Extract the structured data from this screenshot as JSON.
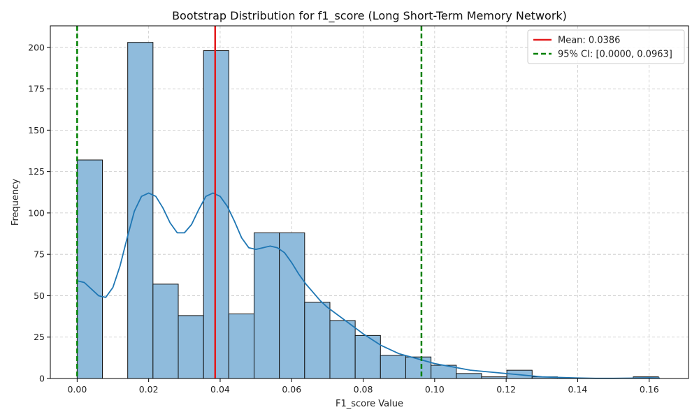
{
  "chart_data": {
    "type": "bar",
    "title": "Bootstrap Distribution for f1_score (Long Short-Term Memory Network)",
    "xlabel": "F1_score Value",
    "ylabel": "Frequency",
    "xlim": [
      -0.0075,
      0.171
    ],
    "ylim": [
      0,
      213
    ],
    "xticks": [
      0.0,
      0.02,
      0.04,
      0.06,
      0.08,
      0.1,
      0.12,
      0.14,
      0.16
    ],
    "xtick_labels": [
      "0.00",
      "0.02",
      "0.04",
      "0.06",
      "0.08",
      "0.10",
      "0.12",
      "0.14",
      "0.16"
    ],
    "yticks": [
      0,
      25,
      50,
      75,
      100,
      125,
      150,
      175,
      200
    ],
    "grid": true,
    "legend_position": "top-right",
    "bin_width": 0.00707,
    "bins": [
      {
        "x0": 0.0,
        "count": 132
      },
      {
        "x0": 0.00707,
        "count": 0
      },
      {
        "x0": 0.01414,
        "count": 203
      },
      {
        "x0": 0.02121,
        "count": 57
      },
      {
        "x0": 0.02828,
        "count": 38
      },
      {
        "x0": 0.03535,
        "count": 198
      },
      {
        "x0": 0.04242,
        "count": 39
      },
      {
        "x0": 0.04949,
        "count": 88
      },
      {
        "x0": 0.05656,
        "count": 88
      },
      {
        "x0": 0.06363,
        "count": 46
      },
      {
        "x0": 0.0707,
        "count": 35
      },
      {
        "x0": 0.07777,
        "count": 26
      },
      {
        "x0": 0.08484,
        "count": 14
      },
      {
        "x0": 0.09191,
        "count": 13
      },
      {
        "x0": 0.09898,
        "count": 8
      },
      {
        "x0": 0.10605,
        "count": 3
      },
      {
        "x0": 0.11312,
        "count": 1
      },
      {
        "x0": 0.12019,
        "count": 5
      },
      {
        "x0": 0.12726,
        "count": 1
      },
      {
        "x0": 0.13433,
        "count": 0
      },
      {
        "x0": 0.1414,
        "count": 0
      },
      {
        "x0": 0.14847,
        "count": 0
      },
      {
        "x0": 0.15554,
        "count": 1
      }
    ],
    "kde": {
      "x": [
        0.0,
        0.002,
        0.004,
        0.006,
        0.008,
        0.01,
        0.012,
        0.014,
        0.016,
        0.018,
        0.02,
        0.022,
        0.024,
        0.026,
        0.028,
        0.03,
        0.032,
        0.034,
        0.036,
        0.038,
        0.04,
        0.042,
        0.044,
        0.046,
        0.048,
        0.05,
        0.052,
        0.054,
        0.056,
        0.058,
        0.06,
        0.062,
        0.064,
        0.066,
        0.068,
        0.07,
        0.075,
        0.08,
        0.085,
        0.09,
        0.095,
        0.1,
        0.105,
        0.11,
        0.115,
        0.12,
        0.125,
        0.13,
        0.135,
        0.14,
        0.145,
        0.15,
        0.155,
        0.16,
        0.163
      ],
      "y": [
        59,
        58,
        54,
        50,
        49,
        55,
        68,
        85,
        101,
        110,
        112,
        110,
        103,
        94,
        88,
        88,
        93,
        102,
        110,
        112,
        110,
        104,
        95,
        85,
        79,
        78,
        79,
        80,
        79,
        76,
        70,
        63,
        57,
        52,
        47,
        43,
        35,
        27,
        20,
        15,
        12,
        9,
        7,
        5,
        4,
        3,
        2,
        1,
        0.6,
        0.3,
        0.1,
        0.1,
        0.2,
        0.4,
        0.2
      ]
    },
    "mean_line": {
      "x": 0.0386,
      "label": "Mean: 0.0386",
      "color": "#e41a1c"
    },
    "ci_lines": {
      "x": [
        0.0,
        0.0963
      ],
      "label": "95% CI: [0.0000, 0.0963]",
      "color": "#008000"
    },
    "colors": {
      "bar_fill": "#8fbbdc",
      "bar_edge": "#111111",
      "kde_line": "#1f77b4",
      "grid": "#c8c8c8"
    }
  }
}
